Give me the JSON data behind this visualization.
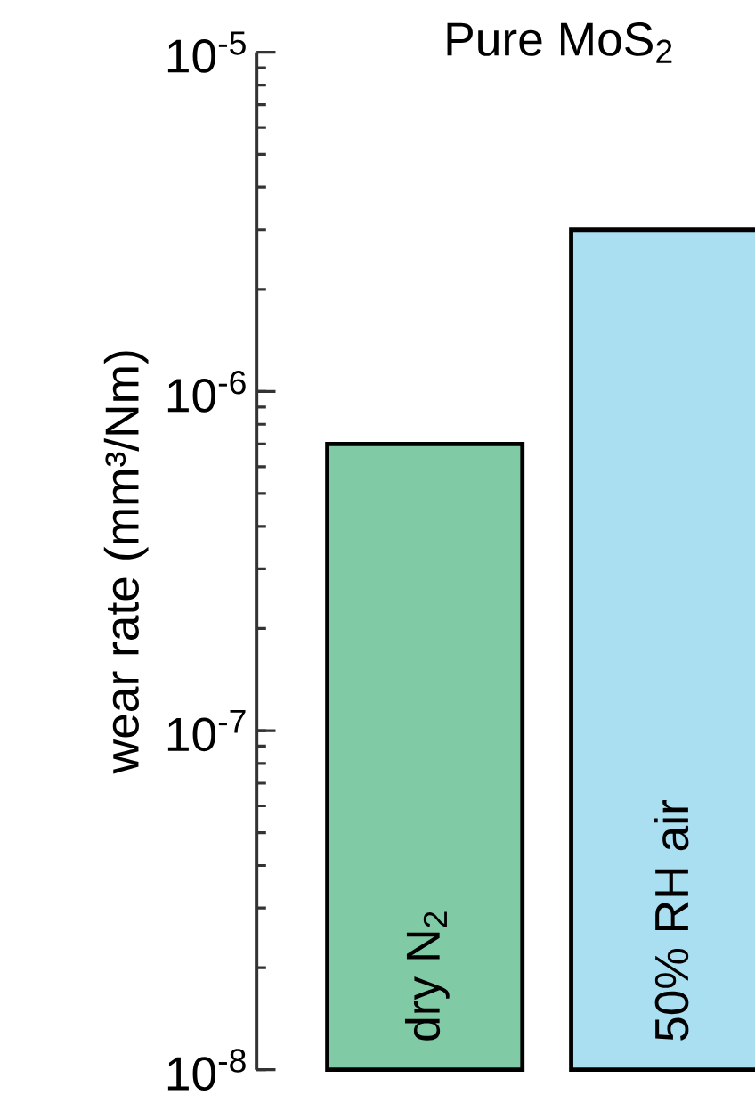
{
  "chart_data": {
    "type": "bar",
    "title": "Pure MoS$_{2}$",
    "ylabel": "wear rate (mm³/Nm)",
    "categories": [
      "dry N$_{2}$",
      "50% RH air"
    ],
    "values": [
      7e-07,
      3e-06
    ],
    "colors": [
      "#80caa5",
      "#aadff1"
    ],
    "log": "y",
    "ylim": [
      1e-08,
      1e-05
    ],
    "yticks": [
      {
        "value": 1e-08,
        "label": "10$^{-8}$"
      },
      {
        "value": 1e-07,
        "label": "10$^{-7}$"
      },
      {
        "value": 1e-06,
        "label": "10$^{-6}$"
      },
      {
        "value": 1e-05,
        "label": "10$^{-5}$"
      }
    ]
  }
}
